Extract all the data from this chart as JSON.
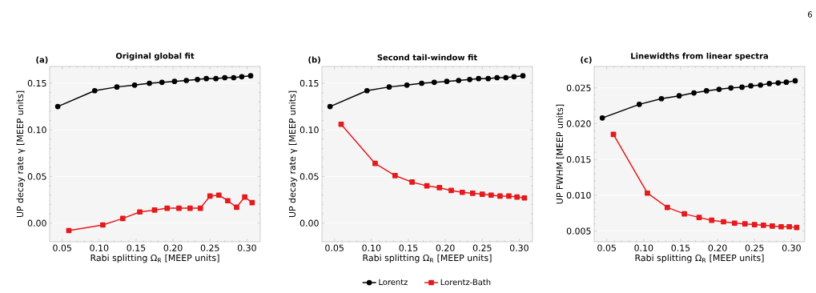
{
  "chart_data": [
    {
      "type": "line",
      "title": "Original global fit",
      "xlabel": "Rabi splitting Ω$_{R}$ [MEEP units]",
      "ylabel": "UP decay rate γ [MEEP units]",
      "annotations": [
        "(a)"
      ],
      "series": [
        {
          "color": "#000000",
          "marker": "circle",
          "x": [
            0.044,
            0.094,
            0.124,
            0.148,
            0.168,
            0.185,
            0.202,
            0.218,
            0.233,
            0.245,
            0.258,
            0.27,
            0.282,
            0.293,
            0.305
          ],
          "values": [
            0.125,
            0.142,
            0.146,
            0.148,
            0.15,
            0.151,
            0.152,
            0.153,
            0.154,
            0.155,
            0.155,
            0.156,
            0.156,
            0.157,
            0.158
          ]
        },
        {
          "color": "#e41a1c",
          "marker": "square",
          "x": [
            0.059,
            0.105,
            0.132,
            0.155,
            0.175,
            0.192,
            0.208,
            0.223,
            0.237,
            0.25,
            0.262,
            0.274,
            0.286,
            0.297,
            0.307
          ],
          "values": [
            -0.008,
            -0.002,
            0.005,
            0.012,
            0.014,
            0.016,
            0.016,
            0.016,
            0.016,
            0.029,
            0.03,
            0.024,
            0.017,
            0.028,
            0.022
          ]
        }
      ],
      "xlim": [
        0.033,
        0.318
      ],
      "xticks": [
        0.05,
        {
          "value": 0.1,
          "label": "0.10"
        },
        0.15,
        {
          "value": 0.2,
          "label": "0.20"
        },
        0.25,
        {
          "value": 0.3,
          "label": "0.30"
        }
      ],
      "ylim": [
        -0.02,
        0.168
      ],
      "yticks": [
        {
          "value": 0.0,
          "label": "0.00"
        },
        0.05,
        {
          "value": 0.1,
          "label": "0.10"
        },
        0.15
      ],
      "grid": "y",
      "line_style": "solid"
    },
    {
      "type": "line",
      "title": "Second tail-window fit",
      "xlabel": "Rabi splitting Ω$_{R}$ [MEEP units]",
      "ylabel": "UP decay rate γ [MEEP units]",
      "annotations": [
        "(b)"
      ],
      "series": [
        {
          "name": "Lorentz",
          "color": "#000000",
          "marker": "circle",
          "x": [
            0.044,
            0.094,
            0.124,
            0.148,
            0.168,
            0.185,
            0.202,
            0.218,
            0.233,
            0.245,
            0.258,
            0.27,
            0.282,
            0.293,
            0.305
          ],
          "values": [
            0.125,
            0.142,
            0.146,
            0.148,
            0.15,
            0.151,
            0.152,
            0.153,
            0.154,
            0.155,
            0.155,
            0.156,
            0.156,
            0.157,
            0.158
          ]
        },
        {
          "name": "Lorentz-Bath",
          "color": "#e41a1c",
          "marker": "square",
          "x": [
            0.059,
            0.105,
            0.132,
            0.155,
            0.175,
            0.192,
            0.208,
            0.223,
            0.237,
            0.25,
            0.262,
            0.274,
            0.286,
            0.297,
            0.307
          ],
          "values": [
            0.106,
            0.064,
            0.051,
            0.044,
            0.04,
            0.038,
            0.035,
            0.033,
            0.032,
            0.031,
            0.03,
            0.029,
            0.029,
            0.028,
            0.027
          ]
        }
      ],
      "xlim": [
        0.033,
        0.318
      ],
      "xticks": [
        0.05,
        {
          "value": 0.1,
          "label": "0.10"
        },
        0.15,
        {
          "value": 0.2,
          "label": "0.20"
        },
        0.25,
        {
          "value": 0.3,
          "label": "0.30"
        }
      ],
      "ylim": [
        -0.02,
        0.168
      ],
      "yticks": [
        {
          "value": 0.0,
          "label": "0.00"
        },
        0.05,
        {
          "value": 0.1,
          "label": "0.10"
        },
        0.15
      ],
      "grid": "y",
      "line_style": "solid",
      "legend": "bottom"
    },
    {
      "type": "line",
      "title": "Linewidths from linear spectra",
      "xlabel": "Rabi splitting Ω$_{R}$ [MEEP units]",
      "ylabel": "UP FWHM [MEEP units]",
      "annotations": [
        "(c)",
        "6"
      ],
      "series": [
        {
          "color": "#000000",
          "marker": "circle",
          "x": [
            0.044,
            0.094,
            0.124,
            0.148,
            0.168,
            0.185,
            0.202,
            0.218,
            0.233,
            0.245,
            0.258,
            0.27,
            0.282,
            0.293,
            0.305
          ],
          "values": [
            0.0208,
            0.0227,
            0.0235,
            0.0239,
            0.0243,
            0.0246,
            0.0248,
            0.025,
            0.0251,
            0.0253,
            0.0254,
            0.0256,
            0.0257,
            0.0258,
            0.026
          ]
        },
        {
          "color": "#e41a1c",
          "marker": "square",
          "x": [
            0.059,
            0.105,
            0.132,
            0.155,
            0.175,
            0.192,
            0.208,
            0.223,
            0.237,
            0.25,
            0.262,
            0.274,
            0.286,
            0.297,
            0.307
          ],
          "values": [
            0.0185,
            0.0103,
            0.0083,
            0.0074,
            0.0069,
            0.0065,
            0.0063,
            0.0061,
            0.006,
            0.0059,
            0.0058,
            0.0057,
            0.0056,
            0.0056,
            0.0055
          ]
        }
      ],
      "xlim": [
        0.033,
        0.318
      ],
      "xticks": [
        0.05,
        {
          "value": 0.1,
          "label": "0.10"
        },
        0.15,
        {
          "value": 0.2,
          "label": "0.20"
        },
        0.25,
        {
          "value": 0.3,
          "label": "0.30"
        }
      ],
      "ylim": [
        0.0035,
        0.028
      ],
      "yticks": [
        0.005,
        {
          "value": 0.01,
          "label": "0.010"
        },
        0.015,
        {
          "value": 0.02,
          "label": "0.020"
        },
        0.025
      ],
      "grid": "y",
      "line_style": "solid"
    }
  ]
}
